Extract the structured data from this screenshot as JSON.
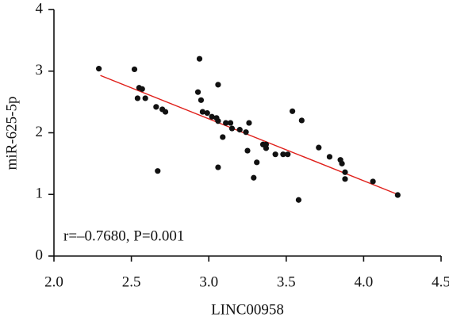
{
  "chart_data": {
    "type": "scatter",
    "x_label": "LINC00958",
    "y_label": "miR-625-5p",
    "annotation": "r=–0.7680, P=0.001",
    "color": "#111111",
    "x": [
      2.29,
      2.52,
      2.94,
      2.55,
      2.57,
      2.54,
      2.59,
      2.66,
      2.7,
      2.72,
      2.93,
      2.95,
      3.06,
      2.96,
      2.99,
      3.02,
      3.05,
      3.06,
      3.11,
      3.14,
      3.15,
      3.26,
      3.09,
      3.2,
      3.24,
      3.25,
      3.31,
      3.35,
      3.37,
      3.37,
      3.43,
      3.48,
      3.51,
      3.54,
      3.6,
      3.29,
      3.06,
      2.67,
      3.58,
      3.71,
      3.78,
      3.85,
      3.86,
      3.88,
      3.88,
      4.06,
      4.22
    ],
    "values": [
      3.04,
      3.03,
      3.2,
      2.73,
      2.71,
      2.56,
      2.56,
      2.42,
      2.38,
      2.34,
      2.66,
      2.53,
      2.78,
      2.34,
      2.32,
      2.26,
      2.24,
      2.19,
      2.16,
      2.16,
      2.07,
      2.16,
      1.93,
      2.05,
      2.01,
      1.71,
      1.52,
      1.81,
      1.75,
      1.81,
      1.65,
      1.65,
      1.65,
      2.35,
      2.2,
      1.27,
      1.44,
      1.38,
      0.91,
      1.76,
      1.61,
      1.56,
      1.5,
      1.36,
      1.25,
      1.21,
      0.99
    ],
    "fit_line": {
      "x": [
        2.3,
        4.22
      ],
      "y": [
        2.93,
        1.0
      ],
      "color": "#e0201b"
    },
    "xlim": [
      2.0,
      4.5
    ],
    "ylim": [
      0,
      4
    ],
    "xticks": [
      {
        "value": 2.0,
        "label": "2.0"
      },
      2.5,
      {
        "value": 3.0,
        "label": "3.0"
      },
      3.5,
      {
        "value": 4.0,
        "label": "4.0"
      },
      4.5
    ],
    "yticks": [
      0,
      1,
      2,
      3,
      4
    ]
  }
}
